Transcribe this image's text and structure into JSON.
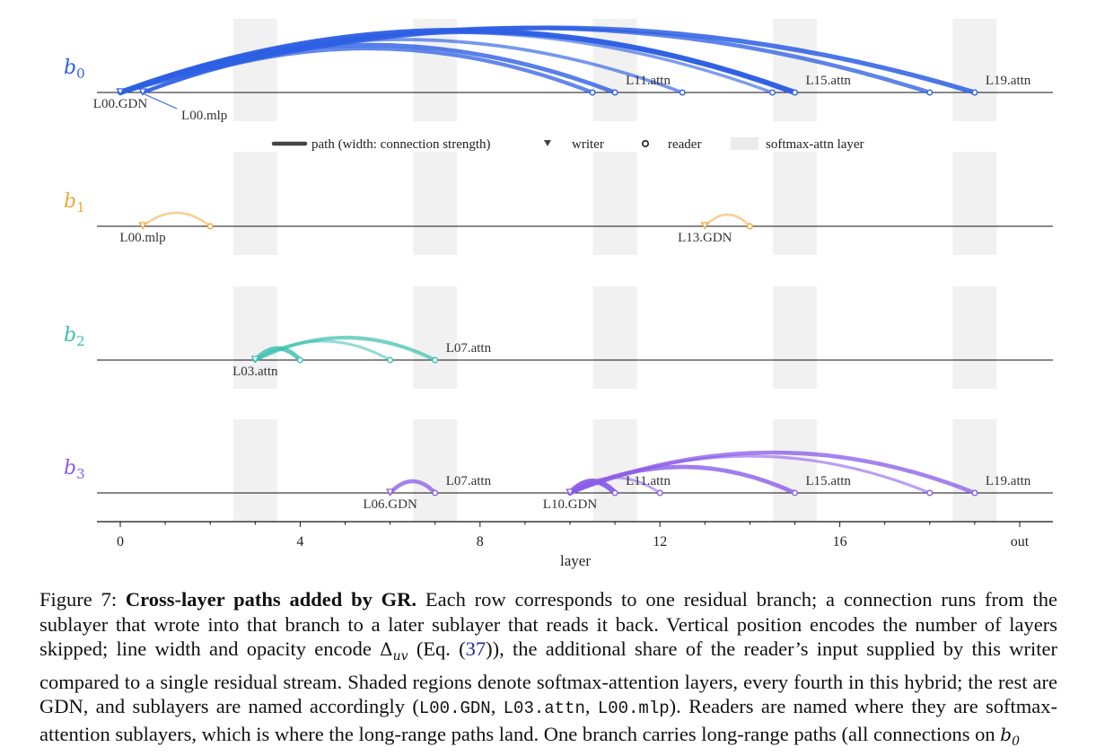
{
  "chart_data": {
    "type": "arc-diagram",
    "xlabel": "layer",
    "x_ticks": [
      {
        "value": 0,
        "label": "0"
      },
      {
        "value": 4,
        "label": "4"
      },
      {
        "value": 8,
        "label": "8"
      },
      {
        "value": 12,
        "label": "12"
      },
      {
        "value": 16,
        "label": "16"
      },
      {
        "value": 20,
        "label": "out"
      }
    ],
    "xlim": [
      -0.5,
      20.75
    ],
    "softmax_attn_layers": [
      3,
      7,
      11,
      15,
      19
    ],
    "legend": {
      "position": "top-center",
      "entries": [
        {
          "symbol": "path",
          "label": "path (width: connection strength)"
        },
        {
          "symbol": "writer",
          "label": "writer"
        },
        {
          "symbol": "reader",
          "label": "reader"
        },
        {
          "symbol": "shade",
          "label": "softmax-attn layer"
        }
      ]
    },
    "rows": [
      {
        "name": "b",
        "sub": "0",
        "color": "#2d5fe3",
        "labels": [
          {
            "x": 0.0,
            "text": "L00.GDN",
            "pos": "below"
          },
          {
            "x": 0.5,
            "text": "L00.mlp",
            "pos": "below-right"
          },
          {
            "x": 11.0,
            "text": "L11.attn",
            "pos": "above"
          },
          {
            "x": 15.0,
            "text": "L15.attn",
            "pos": "above"
          },
          {
            "x": 19.0,
            "text": "L19.attn",
            "pos": "above"
          }
        ],
        "writers": [
          0.0,
          0.5
        ],
        "readers": [
          10.5,
          11.0,
          12.5,
          14.5,
          15.0,
          18.0,
          19.0
        ],
        "paths": [
          {
            "from": 0.0,
            "to": 19.0,
            "strength": 0.85
          },
          {
            "from": 0.0,
            "to": 18.0,
            "strength": 0.7
          },
          {
            "from": 0.0,
            "to": 15.0,
            "strength": 1.0
          },
          {
            "from": 0.5,
            "to": 15.0,
            "strength": 0.6
          },
          {
            "from": 0.0,
            "to": 14.5,
            "strength": 0.45
          },
          {
            "from": 0.0,
            "to": 12.5,
            "strength": 0.5
          },
          {
            "from": 0.0,
            "to": 11.0,
            "strength": 0.75
          },
          {
            "from": 0.5,
            "to": 10.5,
            "strength": 0.65
          }
        ]
      },
      {
        "name": "b",
        "sub": "1",
        "color": "#eda83c",
        "labels": [
          {
            "x": 0.5,
            "text": "L00.mlp",
            "pos": "below"
          },
          {
            "x": 13.0,
            "text": "L13.GDN",
            "pos": "below"
          }
        ],
        "writers": [
          0.5,
          13.0
        ],
        "readers": [
          2.0,
          14.0
        ],
        "paths": [
          {
            "from": 0.5,
            "to": 2.0,
            "strength": 0.3
          },
          {
            "from": 13.0,
            "to": 14.0,
            "strength": 0.3
          }
        ]
      },
      {
        "name": "b",
        "sub": "2",
        "color": "#3cc0b0",
        "labels": [
          {
            "x": 3.0,
            "text": "L03.attn",
            "pos": "below"
          },
          {
            "x": 7.0,
            "text": "L07.attn",
            "pos": "above"
          }
        ],
        "writers": [
          3.0
        ],
        "readers": [
          4.0,
          6.0,
          7.0
        ],
        "paths": [
          {
            "from": 3.0,
            "to": 4.0,
            "strength": 0.8
          },
          {
            "from": 3.0,
            "to": 6.0,
            "strength": 0.35
          },
          {
            "from": 3.0,
            "to": 7.0,
            "strength": 0.6
          }
        ]
      },
      {
        "name": "b",
        "sub": "3",
        "color": "#8b5ce8",
        "labels": [
          {
            "x": 6.0,
            "text": "L06.GDN",
            "pos": "below"
          },
          {
            "x": 7.0,
            "text": "L07.attn",
            "pos": "above"
          },
          {
            "x": 10.0,
            "text": "L10.GDN",
            "pos": "below"
          },
          {
            "x": 11.0,
            "text": "L11.attn",
            "pos": "above"
          },
          {
            "x": 15.0,
            "text": "L15.attn",
            "pos": "above"
          },
          {
            "x": 19.0,
            "text": "L19.attn",
            "pos": "above"
          }
        ],
        "writers": [
          6.0,
          10.0
        ],
        "readers": [
          7.0,
          11.0,
          12.0,
          15.0,
          18.0,
          19.0
        ],
        "paths": [
          {
            "from": 6.0,
            "to": 7.0,
            "strength": 0.7
          },
          {
            "from": 10.0,
            "to": 11.0,
            "strength": 1.0
          },
          {
            "from": 10.0,
            "to": 12.0,
            "strength": 0.35
          },
          {
            "from": 10.0,
            "to": 15.0,
            "strength": 0.75
          },
          {
            "from": 10.0,
            "to": 18.0,
            "strength": 0.4
          },
          {
            "from": 10.0,
            "to": 19.0,
            "strength": 0.7
          }
        ]
      }
    ]
  },
  "caption": {
    "prefix": "Figure 7: ",
    "title": "Cross-layer paths added by GR.",
    "text_1": " Each row corresponds to one residual branch; a connection runs from the sublayer that wrote into that branch to a later sublayer that reads it back. Vertical position encodes the number of layers skipped; line width and opacity encode ",
    "math_delta": "Δ",
    "math_sub": "uv",
    "text_2": " (Eq. (",
    "eq_ref": "37",
    "text_3": ")), the additional share of the reader’s input supplied by this writer compared to a single residual stream. Shaded regions denote softmax-attention layers, every fourth in this hybrid; the rest are GDN, and sublayers are named accordingly (",
    "code_1": "L00.GDN",
    "sep_1": ", ",
    "code_2": "L03.attn",
    "sep_2": ", ",
    "code_3": "L00.mlp",
    "text_4": "). Readers are named where they are softmax-attention sublayers, which is where the long-range paths land. One branch carries long-range paths (all connections on ",
    "math_b": "b",
    "math_b_sub": "0"
  }
}
